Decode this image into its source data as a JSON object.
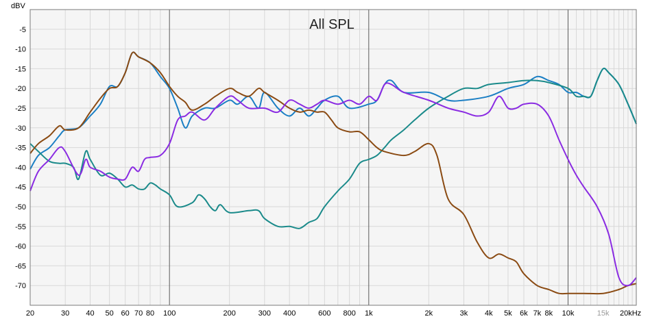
{
  "chart_data": {
    "type": "line",
    "title": "All SPL",
    "ylabel": "dBV",
    "x_scale": "log",
    "xlim": [
      20,
      22000
    ],
    "ylim": [
      -75,
      0
    ],
    "grid": true,
    "y_ticks": [
      {
        "value": -5,
        "label": "-5"
      },
      {
        "value": -10,
        "label": "-10"
      },
      {
        "value": -15,
        "label": "-15"
      },
      {
        "value": -20,
        "label": "-20"
      },
      {
        "value": -25,
        "label": "-25"
      },
      {
        "value": -30,
        "label": "-30"
      },
      {
        "value": -35,
        "label": "-35"
      },
      {
        "value": -40,
        "label": "-40"
      },
      {
        "value": -45,
        "label": "-45"
      },
      {
        "value": -50,
        "label": "-50"
      },
      {
        "value": -55,
        "label": "-55"
      },
      {
        "value": -60,
        "label": "-60"
      },
      {
        "value": -65,
        "label": "-65"
      },
      {
        "value": -70,
        "label": "-70"
      }
    ],
    "x_ticks": [
      {
        "value": 20,
        "label": "20"
      },
      {
        "value": 30,
        "label": "30"
      },
      {
        "value": 40,
        "label": "40"
      },
      {
        "value": 50,
        "label": "50"
      },
      {
        "value": 60,
        "label": "60"
      },
      {
        "value": 70,
        "label": "70"
      },
      {
        "value": 80,
        "label": "80"
      },
      {
        "value": 100,
        "label": "100"
      },
      {
        "value": 200,
        "label": "200"
      },
      {
        "value": 300,
        "label": "300"
      },
      {
        "value": 400,
        "label": "400"
      },
      {
        "value": 600,
        "label": "600"
      },
      {
        "value": 800,
        "label": "800"
      },
      {
        "value": 1000,
        "label": "1k"
      },
      {
        "value": 2000,
        "label": "2k"
      },
      {
        "value": 3000,
        "label": "3k"
      },
      {
        "value": 4000,
        "label": "4k"
      },
      {
        "value": 5000,
        "label": "5k"
      },
      {
        "value": 6000,
        "label": "6k"
      },
      {
        "value": 7000,
        "label": "7k"
      },
      {
        "value": 8000,
        "label": "8k"
      },
      {
        "value": 10000,
        "label": "10k"
      },
      {
        "value": 15000,
        "label": "15k",
        "muted": true
      },
      {
        "value": 20000,
        "label": "20kHz"
      }
    ],
    "colors": {
      "background": "#f5f5f5",
      "grid_minor": "#d8d8d8",
      "grid_major": "#5a5a5a",
      "frame": "#7a7a7a"
    },
    "series": [
      {
        "color": "#1b7fc4",
        "points": [
          [
            20,
            -40.5
          ],
          [
            22,
            -37
          ],
          [
            25,
            -35
          ],
          [
            28,
            -32
          ],
          [
            30,
            -30.5
          ],
          [
            35,
            -30
          ],
          [
            40,
            -27
          ],
          [
            45,
            -24
          ],
          [
            50,
            -19.5
          ],
          [
            55,
            -19.5
          ],
          [
            60,
            -16
          ],
          [
            65,
            -11
          ],
          [
            70,
            -12
          ],
          [
            80,
            -13.5
          ],
          [
            90,
            -17
          ],
          [
            100,
            -20
          ],
          [
            110,
            -25
          ],
          [
            120,
            -30
          ],
          [
            130,
            -27
          ],
          [
            150,
            -25
          ],
          [
            170,
            -25
          ],
          [
            200,
            -23
          ],
          [
            220,
            -24
          ],
          [
            250,
            -22
          ],
          [
            280,
            -25
          ],
          [
            300,
            -21
          ],
          [
            350,
            -25
          ],
          [
            400,
            -27
          ],
          [
            450,
            -25
          ],
          [
            500,
            -27
          ],
          [
            550,
            -25
          ],
          [
            600,
            -23
          ],
          [
            700,
            -22
          ],
          [
            800,
            -25
          ],
          [
            1000,
            -24
          ],
          [
            1100,
            -23
          ],
          [
            1200,
            -19
          ],
          [
            1300,
            -18
          ],
          [
            1500,
            -21
          ],
          [
            2000,
            -21
          ],
          [
            2500,
            -23
          ],
          [
            3000,
            -23
          ],
          [
            4000,
            -22
          ],
          [
            5000,
            -20
          ],
          [
            6000,
            -19
          ],
          [
            7000,
            -17
          ],
          [
            8000,
            -18
          ],
          [
            9000,
            -19
          ],
          [
            10000,
            -21
          ],
          [
            11000,
            -21
          ],
          [
            12000,
            -22
          ],
          [
            13000,
            -22
          ],
          [
            14000,
            -18
          ],
          [
            15000,
            -15
          ],
          [
            16000,
            -16
          ],
          [
            18000,
            -19
          ],
          [
            20000,
            -24
          ],
          [
            22000,
            -29
          ]
        ]
      },
      {
        "color": "#1a8a8a",
        "points": [
          [
            20,
            -34
          ],
          [
            22,
            -36
          ],
          [
            25,
            -38.5
          ],
          [
            28,
            -39
          ],
          [
            30,
            -39
          ],
          [
            33,
            -40
          ],
          [
            35,
            -43
          ],
          [
            38,
            -36
          ],
          [
            40,
            -38
          ],
          [
            45,
            -42
          ],
          [
            50,
            -41.5
          ],
          [
            55,
            -43
          ],
          [
            60,
            -45
          ],
          [
            65,
            -44.5
          ],
          [
            70,
            -45.5
          ],
          [
            75,
            -45.5
          ],
          [
            80,
            -44
          ],
          [
            85,
            -44.5
          ],
          [
            90,
            -45.5
          ],
          [
            100,
            -47
          ],
          [
            110,
            -50
          ],
          [
            130,
            -49
          ],
          [
            140,
            -47
          ],
          [
            150,
            -48
          ],
          [
            160,
            -50
          ],
          [
            170,
            -51
          ],
          [
            180,
            -49.5
          ],
          [
            200,
            -51.5
          ],
          [
            250,
            -51
          ],
          [
            280,
            -51
          ],
          [
            300,
            -53
          ],
          [
            350,
            -55
          ],
          [
            400,
            -55
          ],
          [
            450,
            -55.5
          ],
          [
            500,
            -54
          ],
          [
            550,
            -53
          ],
          [
            600,
            -50
          ],
          [
            700,
            -46
          ],
          [
            800,
            -43
          ],
          [
            900,
            -39
          ],
          [
            1000,
            -38
          ],
          [
            1100,
            -37
          ],
          [
            1200,
            -35
          ],
          [
            1300,
            -33
          ],
          [
            1500,
            -30.5
          ],
          [
            1700,
            -28
          ],
          [
            2000,
            -25
          ],
          [
            2500,
            -22
          ],
          [
            3000,
            -20
          ],
          [
            3500,
            -20
          ],
          [
            4000,
            -19
          ],
          [
            5000,
            -18.5
          ],
          [
            6000,
            -18
          ],
          [
            7000,
            -18
          ],
          [
            8000,
            -18.5
          ],
          [
            10000,
            -20
          ],
          [
            11000,
            -22
          ],
          [
            12000,
            -22
          ],
          [
            13000,
            -22
          ],
          [
            14000,
            -18
          ],
          [
            15000,
            -15
          ],
          [
            16000,
            -16
          ],
          [
            18000,
            -19
          ],
          [
            20000,
            -24
          ],
          [
            22000,
            -29
          ]
        ]
      },
      {
        "color": "#8a4a12",
        "points": [
          [
            20,
            -36.5
          ],
          [
            22,
            -34
          ],
          [
            25,
            -32
          ],
          [
            28,
            -29.5
          ],
          [
            30,
            -30.5
          ],
          [
            35,
            -30
          ],
          [
            40,
            -26
          ],
          [
            45,
            -22.5
          ],
          [
            50,
            -20
          ],
          [
            55,
            -19.5
          ],
          [
            60,
            -16
          ],
          [
            65,
            -11
          ],
          [
            70,
            -12
          ],
          [
            80,
            -13.5
          ],
          [
            90,
            -16
          ],
          [
            100,
            -19.5
          ],
          [
            110,
            -22
          ],
          [
            120,
            -23.5
          ],
          [
            130,
            -25.5
          ],
          [
            150,
            -24
          ],
          [
            170,
            -22
          ],
          [
            200,
            -20
          ],
          [
            220,
            -21
          ],
          [
            250,
            -22
          ],
          [
            280,
            -20
          ],
          [
            300,
            -21
          ],
          [
            350,
            -23
          ],
          [
            400,
            -25
          ],
          [
            450,
            -26
          ],
          [
            500,
            -25.5
          ],
          [
            550,
            -26
          ],
          [
            600,
            -26
          ],
          [
            650,
            -28
          ],
          [
            700,
            -30
          ],
          [
            800,
            -31
          ],
          [
            900,
            -31
          ],
          [
            1000,
            -33
          ],
          [
            1100,
            -35
          ],
          [
            1200,
            -36
          ],
          [
            1500,
            -37
          ],
          [
            1700,
            -36
          ],
          [
            2000,
            -34
          ],
          [
            2200,
            -37
          ],
          [
            2500,
            -48
          ],
          [
            3000,
            -52
          ],
          [
            3500,
            -59
          ],
          [
            4000,
            -63
          ],
          [
            4500,
            -62
          ],
          [
            5000,
            -63
          ],
          [
            5500,
            -64
          ],
          [
            6000,
            -67
          ],
          [
            7000,
            -70
          ],
          [
            8000,
            -71
          ],
          [
            9000,
            -72
          ],
          [
            10000,
            -72
          ],
          [
            12000,
            -72
          ],
          [
            15000,
            -72
          ],
          [
            18000,
            -71
          ],
          [
            20000,
            -70
          ],
          [
            22000,
            -69.5
          ]
        ]
      },
      {
        "color": "#8a2be2",
        "points": [
          [
            20,
            -46
          ],
          [
            22,
            -41
          ],
          [
            25,
            -38
          ],
          [
            28,
            -35
          ],
          [
            30,
            -36
          ],
          [
            35,
            -42
          ],
          [
            38,
            -38
          ],
          [
            40,
            -40
          ],
          [
            45,
            -41
          ],
          [
            50,
            -42.5
          ],
          [
            55,
            -43
          ],
          [
            60,
            -43
          ],
          [
            65,
            -40
          ],
          [
            70,
            -41
          ],
          [
            75,
            -38
          ],
          [
            80,
            -37.5
          ],
          [
            90,
            -37
          ],
          [
            100,
            -34
          ],
          [
            110,
            -28
          ],
          [
            120,
            -27
          ],
          [
            130,
            -26
          ],
          [
            150,
            -28
          ],
          [
            170,
            -25
          ],
          [
            200,
            -22
          ],
          [
            220,
            -23
          ],
          [
            250,
            -25
          ],
          [
            300,
            -25
          ],
          [
            350,
            -26
          ],
          [
            400,
            -23
          ],
          [
            450,
            -24
          ],
          [
            500,
            -25
          ],
          [
            550,
            -24
          ],
          [
            600,
            -23
          ],
          [
            700,
            -24
          ],
          [
            800,
            -23
          ],
          [
            900,
            -24
          ],
          [
            1000,
            -22
          ],
          [
            1100,
            -23
          ],
          [
            1200,
            -19
          ],
          [
            1300,
            -19
          ],
          [
            1500,
            -21
          ],
          [
            2000,
            -23
          ],
          [
            2500,
            -25
          ],
          [
            3000,
            -26
          ],
          [
            3500,
            -27
          ],
          [
            4000,
            -26
          ],
          [
            4500,
            -22
          ],
          [
            5000,
            -25
          ],
          [
            5500,
            -25
          ],
          [
            6000,
            -24
          ],
          [
            7000,
            -24
          ],
          [
            8000,
            -27
          ],
          [
            9000,
            -33
          ],
          [
            10000,
            -38
          ],
          [
            11000,
            -42
          ],
          [
            12000,
            -45
          ],
          [
            14000,
            -50
          ],
          [
            16000,
            -57
          ],
          [
            18000,
            -68
          ],
          [
            20000,
            -70
          ],
          [
            22000,
            -68
          ]
        ]
      }
    ]
  }
}
